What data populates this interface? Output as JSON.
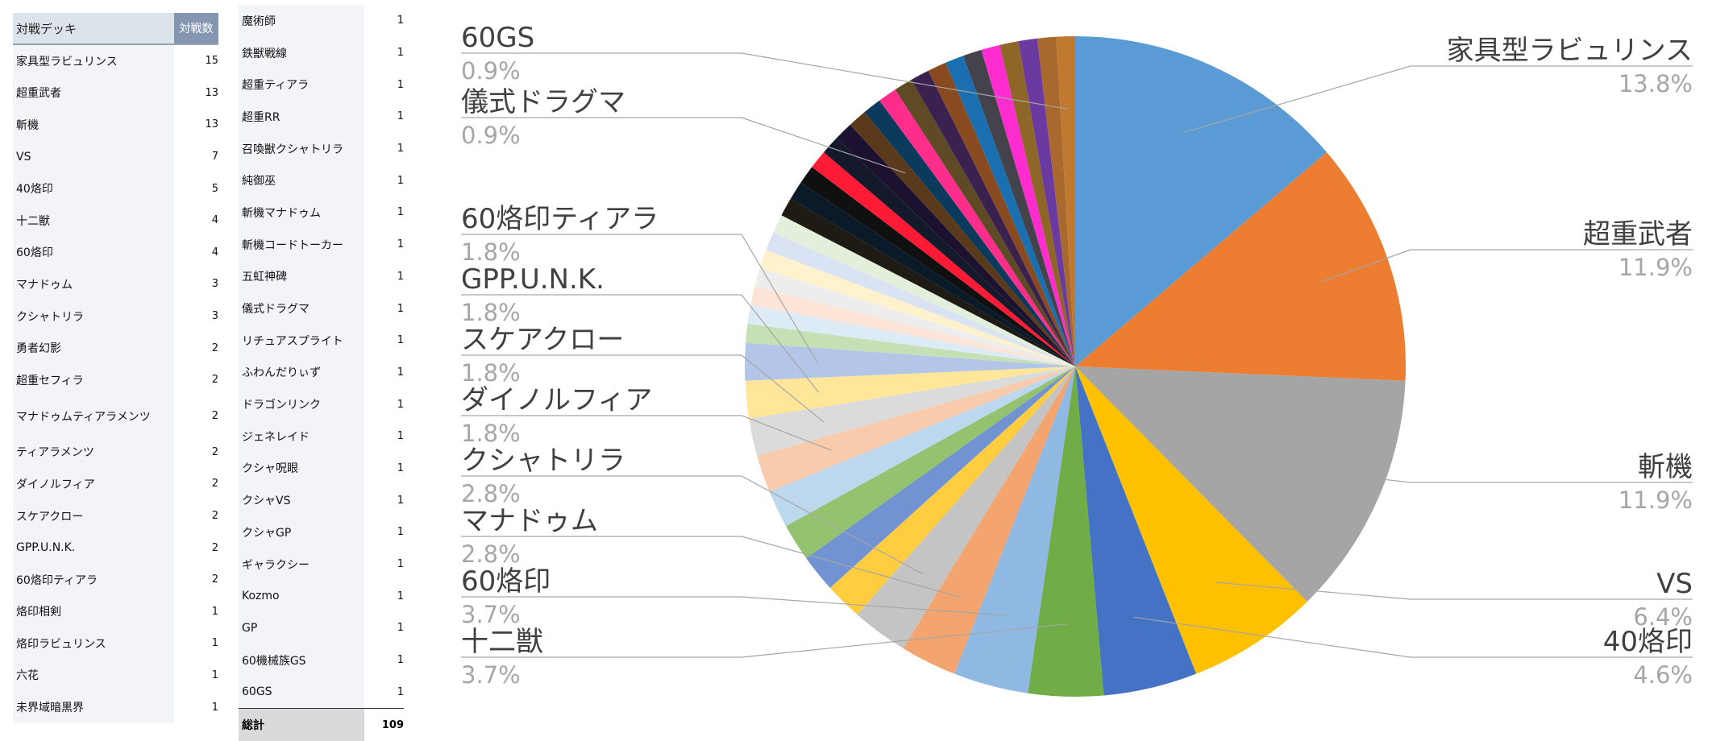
{
  "left_table": {
    "header": {
      "name": "対戦デッキ",
      "count": "対戦数"
    },
    "rows": [
      {
        "name": "家具型ラビュリンス",
        "count": "15"
      },
      {
        "name": "超重武者",
        "count": "13"
      },
      {
        "name": "斬機",
        "count": "13"
      },
      {
        "name": "VS",
        "count": "7"
      },
      {
        "name": "40烙印",
        "count": "5"
      },
      {
        "name": "十二獣",
        "count": "4"
      },
      {
        "name": "60烙印",
        "count": "4"
      },
      {
        "name": "マナドゥム",
        "count": "3"
      },
      {
        "name": "クシャトリラ",
        "count": "3"
      },
      {
        "name": "勇者幻影",
        "count": "2"
      },
      {
        "name": "超重セフィラ",
        "count": "2"
      },
      {
        "name": "マナドゥムティアラメンツ",
        "count": "2"
      },
      {
        "name": "ティアラメンツ",
        "count": "2"
      },
      {
        "name": "ダイノルフィア",
        "count": "2"
      },
      {
        "name": "スケアクロー",
        "count": "2"
      },
      {
        "name": "GPP.U.N.K.",
        "count": "2"
      },
      {
        "name": "60烙印ティアラ",
        "count": "2"
      },
      {
        "name": "烙印相剣",
        "count": "1"
      },
      {
        "name": "烙印ラビュリンス",
        "count": "1"
      },
      {
        "name": "六花",
        "count": "1"
      },
      {
        "name": "未界域暗黒界",
        "count": "1"
      }
    ]
  },
  "middle_table": {
    "rows": [
      {
        "name": "魔術師",
        "count": "1"
      },
      {
        "name": "鉄獣戦線",
        "count": "1"
      },
      {
        "name": "超重ティアラ",
        "count": "1"
      },
      {
        "name": "超重RR",
        "count": "1"
      },
      {
        "name": "召喚獣クシャトリラ",
        "count": "1"
      },
      {
        "name": "純御巫",
        "count": "1"
      },
      {
        "name": "斬機マナドゥム",
        "count": "1"
      },
      {
        "name": "斬機コードトーカー",
        "count": "1"
      },
      {
        "name": "五虹神碑",
        "count": "1"
      },
      {
        "name": "儀式ドラグマ",
        "count": "1"
      },
      {
        "name": "リチュアスプライト",
        "count": "1"
      },
      {
        "name": "ふわんだりぃず",
        "count": "1"
      },
      {
        "name": "ドラゴンリンク",
        "count": "1"
      },
      {
        "name": "ジェネレイド",
        "count": "1"
      },
      {
        "name": "クシャ呪眼",
        "count": "1"
      },
      {
        "name": "クシャVS",
        "count": "1"
      },
      {
        "name": "クシャGP",
        "count": "1"
      },
      {
        "name": "ギャラクシー",
        "count": "1"
      },
      {
        "name": "Kozmo",
        "count": "1"
      },
      {
        "name": "GP",
        "count": "1"
      },
      {
        "name": "60機械族GS",
        "count": "1"
      },
      {
        "name": "60GS",
        "count": "1"
      }
    ],
    "total": {
      "label": "総計",
      "count": "109"
    }
  },
  "chart_data": {
    "type": "pie",
    "total": 109,
    "slices": [
      {
        "name": "家具型ラビュリンス",
        "value": 15,
        "color": "#5b9bd5"
      },
      {
        "name": "超重武者",
        "value": 13,
        "color": "#ed7d31"
      },
      {
        "name": "斬機",
        "value": 13,
        "color": "#a5a5a5"
      },
      {
        "name": "VS",
        "value": 7,
        "color": "#ffc000"
      },
      {
        "name": "40烙印",
        "value": 5,
        "color": "#4472c4"
      },
      {
        "name": "十二獣",
        "value": 4,
        "color": "#70ad47"
      },
      {
        "name": "60烙印",
        "value": 4,
        "color": "#8fb8e3"
      },
      {
        "name": "マナドゥム",
        "value": 3,
        "color": "#f4a46e"
      },
      {
        "name": "クシャトリラ",
        "value": 3,
        "color": "#c4c4c4"
      },
      {
        "name": "勇者幻影",
        "value": 2,
        "color": "#ffcd3f"
      },
      {
        "name": "超重セフィラ",
        "value": 2,
        "color": "#7193d1"
      },
      {
        "name": "マナドゥムティアラメンツ",
        "value": 2,
        "color": "#94c26f"
      },
      {
        "name": "ティアラメンツ",
        "value": 2,
        "color": "#bdd7ee"
      },
      {
        "name": "ダイノルフィア",
        "value": 2,
        "color": "#f8cbad"
      },
      {
        "name": "スケアクロー",
        "value": 2,
        "color": "#dbdbdb"
      },
      {
        "name": "GPP.U.N.K.",
        "value": 2,
        "color": "#ffe699"
      },
      {
        "name": "60烙印ティアラ",
        "value": 2,
        "color": "#b4c6e7"
      },
      {
        "name": "烙印相剣",
        "value": 1,
        "color": "#c5e0b4"
      },
      {
        "name": "烙印ラビュリンス",
        "value": 1,
        "color": "#ddebf7"
      },
      {
        "name": "六花",
        "value": 1,
        "color": "#fce4d6"
      },
      {
        "name": "未界域暗黒界",
        "value": 1,
        "color": "#ededed"
      },
      {
        "name": "魔術師",
        "value": 1,
        "color": "#fff2cc"
      },
      {
        "name": "鉄獣戦線",
        "value": 1,
        "color": "#dae3f3"
      },
      {
        "name": "超重ティアラ",
        "value": 1,
        "color": "#e2efda"
      },
      {
        "name": "超重RR",
        "value": 1,
        "color": "#1f1a14"
      },
      {
        "name": "召喚獣クシャトリラ",
        "value": 1,
        "color": "#0a1a28"
      },
      {
        "name": "純御巫",
        "value": 1,
        "color": "#101010"
      },
      {
        "name": "斬機マナドゥム",
        "value": 1,
        "color": "#ff1a35"
      },
      {
        "name": "斬機コードトーカー",
        "value": 1,
        "color": "#141a2c"
      },
      {
        "name": "五虹神碑",
        "value": 1,
        "color": "#1c1230"
      },
      {
        "name": "儀式ドラグマ",
        "value": 1,
        "color": "#5a3a1a"
      },
      {
        "name": "リチュアスプライト",
        "value": 1,
        "color": "#0b3a5c"
      },
      {
        "name": "ふわんだりぃず",
        "value": 1,
        "color": "#ff2d8c"
      },
      {
        "name": "ドラゴンリンク",
        "value": 1,
        "color": "#5e4a24"
      },
      {
        "name": "ジェネレイド",
        "value": 1,
        "color": "#3b2150"
      },
      {
        "name": "クシャ呪眼",
        "value": 1,
        "color": "#8a4a20"
      },
      {
        "name": "クシャVS",
        "value": 1,
        "color": "#1a6fb0"
      },
      {
        "name": "クシャGP",
        "value": 1,
        "color": "#44424a"
      },
      {
        "name": "ギャラクシー",
        "value": 1,
        "color": "#ff2ccf"
      },
      {
        "name": "Kozmo",
        "value": 1,
        "color": "#8d6628"
      },
      {
        "name": "GP",
        "value": 1,
        "color": "#6b3aa0"
      },
      {
        "name": "60機械族GS",
        "value": 1,
        "color": "#a9682e"
      },
      {
        "name": "60GS",
        "value": 1,
        "color": "#c07a30"
      }
    ],
    "labels": [
      {
        "name": "家具型ラビュリンス",
        "percent": "13.8%"
      },
      {
        "name": "超重武者",
        "percent": "11.9%"
      },
      {
        "name": "斬機",
        "percent": "11.9%"
      },
      {
        "name": "VS",
        "percent": "6.4%"
      },
      {
        "name": "40烙印",
        "percent": "4.6%"
      },
      {
        "name": "十二獣",
        "percent": "3.7%"
      },
      {
        "name": "60烙印",
        "percent": "3.7%"
      },
      {
        "name": "マナドゥム",
        "percent": "2.8%"
      },
      {
        "name": "クシャトリラ",
        "percent": "2.8%"
      },
      {
        "name": "ダイノルフィア",
        "percent": "1.8%"
      },
      {
        "name": "スケアクロー",
        "percent": "1.8%"
      },
      {
        "name": "GPP.U.N.K.",
        "percent": "1.8%"
      },
      {
        "name": "60烙印ティアラ",
        "percent": "1.8%"
      },
      {
        "name": "儀式ドラグマ",
        "percent": "0.9%"
      },
      {
        "name": "60GS",
        "percent": "0.9%"
      }
    ]
  }
}
